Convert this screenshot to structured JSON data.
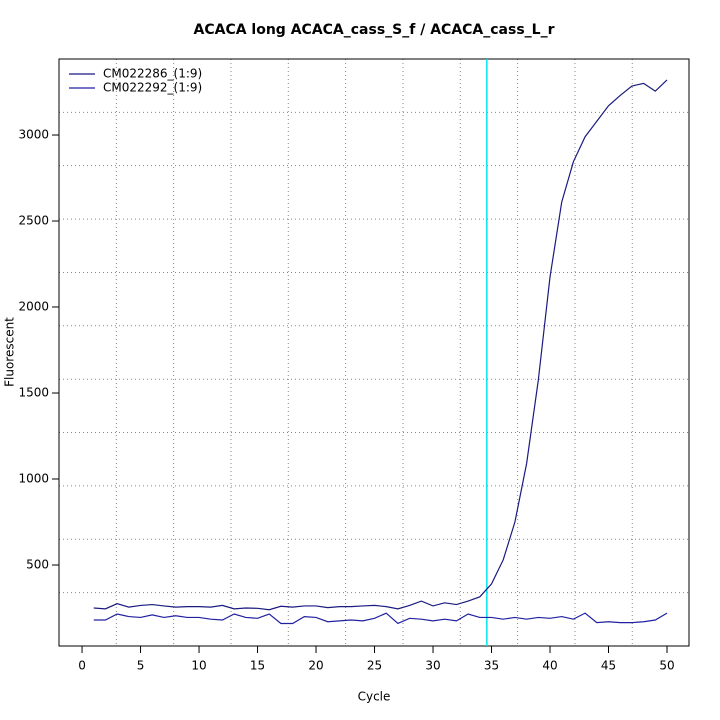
{
  "chart_data": {
    "type": "line",
    "title": "ACACA long ACACA_cass_S_f / ACACA_cass_L_r",
    "x_label": "Cycle",
    "y_label": "Fluorescent",
    "x": [
      1,
      2,
      3,
      4,
      5,
      6,
      7,
      8,
      9,
      10,
      11,
      12,
      13,
      14,
      15,
      16,
      17,
      18,
      19,
      20,
      21,
      22,
      23,
      24,
      25,
      26,
      27,
      28,
      29,
      30,
      31,
      32,
      33,
      34,
      35,
      36,
      37,
      38,
      39,
      40,
      41,
      42,
      43,
      44,
      45,
      46,
      47,
      48,
      49,
      50
    ],
    "series": [
      {
        "name": "CM022286_(1:9)",
        "color": "#1a1a80",
        "values": [
          250,
          245,
          275,
          255,
          265,
          270,
          262,
          255,
          258,
          258,
          255,
          265,
          245,
          250,
          248,
          240,
          260,
          255,
          262,
          262,
          252,
          258,
          258,
          262,
          265,
          258,
          245,
          265,
          290,
          262,
          280,
          270,
          290,
          315,
          390,
          530,
          750,
          1090,
          1575,
          2175,
          2610,
          2845,
          2990,
          3080,
          3170,
          3230,
          3285,
          3300,
          3255,
          3320
        ]
      },
      {
        "name": "CM022292_(1:9)",
        "color": "#2020a0",
        "values": [
          180,
          180,
          215,
          200,
          195,
          210,
          195,
          205,
          195,
          195,
          185,
          180,
          215,
          195,
          190,
          215,
          160,
          160,
          200,
          195,
          170,
          175,
          180,
          175,
          190,
          220,
          160,
          190,
          185,
          175,
          185,
          175,
          215,
          195,
          195,
          185,
          195,
          185,
          195,
          190,
          200,
          185,
          220,
          165,
          170,
          165,
          165,
          170,
          180,
          220
        ]
      }
    ],
    "threshold_x": 34.6,
    "threshold_color": "#00e5ee",
    "xlim": [
      -1.97,
      51.88
    ],
    "ylim": [
      29,
      3442
    ],
    "xticks": [
      0,
      5,
      10,
      15,
      20,
      25,
      30,
      35,
      40,
      45,
      50
    ],
    "yticks": [
      500,
      1000,
      1500,
      2000,
      2500,
      3000
    ],
    "xgrid": [
      2.93,
      7.83,
      12.73,
      17.63,
      22.53,
      27.43,
      32.33,
      37.23,
      42.13,
      47.03
    ],
    "ygrid": [
      339,
      650,
      960,
      1270,
      1580,
      1891,
      2201,
      2511,
      2822,
      3132
    ],
    "grid": true,
    "legend": "top-left"
  }
}
